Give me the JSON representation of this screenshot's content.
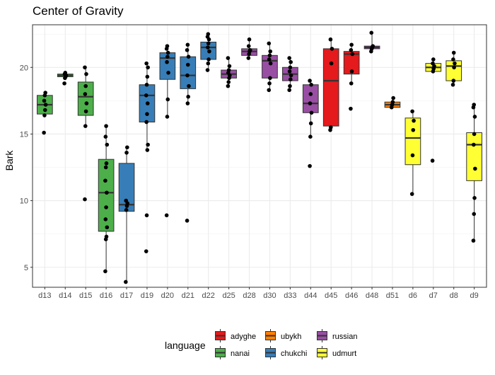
{
  "chart_data": {
    "type": "boxplot",
    "title": "Center of Gravity",
    "xlabel": "",
    "ylabel": "Bark",
    "ylim": [
      3.5,
      23.2
    ],
    "yticks": [
      5,
      10,
      15,
      20
    ],
    "grid": true,
    "legend": {
      "title": "language",
      "placement": "bottom",
      "entries": [
        {
          "name": "adyghe",
          "color": "#E41A1C"
        },
        {
          "name": "nanai",
          "color": "#4DAF4A"
        },
        {
          "name": "ubykh",
          "color": "#FF7F00"
        },
        {
          "name": "chukchi",
          "color": "#377EB8"
        },
        {
          "name": "russian",
          "color": "#984EA3"
        },
        {
          "name": "udmurt",
          "color": "#FFFF33"
        }
      ]
    },
    "categories": [
      "d13",
      "d14",
      "d15",
      "d16",
      "d17",
      "d19",
      "d20",
      "d21",
      "d22",
      "d25",
      "d28",
      "d30",
      "d33",
      "d44",
      "d45",
      "d46",
      "d48",
      "d51",
      "d6",
      "d7",
      "d8",
      "d9"
    ],
    "boxes": [
      {
        "category": "d13",
        "language": "nanai",
        "low": 16.3,
        "q1": 16.5,
        "median": 17.2,
        "q3": 17.9,
        "high": 18.1,
        "outliers": [
          15.1
        ],
        "points": [
          15.1,
          16.4,
          16.8,
          17.2,
          17.5,
          17.9,
          18.1
        ]
      },
      {
        "category": "d14",
        "language": "nanai",
        "low": 19.2,
        "q1": 19.3,
        "median": 19.4,
        "q3": 19.5,
        "high": 19.6,
        "outliers": [
          18.8
        ],
        "points": [
          18.8,
          19.2,
          19.3,
          19.4,
          19.5,
          19.6
        ]
      },
      {
        "category": "d15",
        "language": "nanai",
        "low": 15.6,
        "q1": 16.4,
        "median": 17.8,
        "q3": 18.9,
        "high": 20.0,
        "outliers": [
          10.1
        ],
        "points": [
          10.1,
          15.6,
          16.7,
          17.3,
          18.0,
          18.6,
          19.5,
          20.0
        ]
      },
      {
        "category": "d16",
        "language": "nanai",
        "low": 4.7,
        "q1": 7.7,
        "median": 10.6,
        "q3": 13.1,
        "high": 15.6,
        "outliers": [],
        "points": [
          4.7,
          7.1,
          7.3,
          8.0,
          8.6,
          9.5,
          10.6,
          11.5,
          12.5,
          12.8,
          14.2,
          14.8,
          15.6
        ]
      },
      {
        "category": "d17",
        "language": "chukchi",
        "low": 3.9,
        "q1": 9.2,
        "median": 9.7,
        "q3": 12.8,
        "high": 14.0,
        "outliers": [],
        "points": [
          3.9,
          9.3,
          9.6,
          9.8,
          10.0,
          13.6,
          14.0
        ]
      },
      {
        "category": "d19",
        "language": "chukchi",
        "low": 13.8,
        "q1": 15.9,
        "median": 17.9,
        "q3": 18.7,
        "high": 20.3,
        "outliers": [
          8.9,
          6.2
        ],
        "points": [
          6.2,
          8.9,
          13.8,
          14.2,
          15.9,
          16.5,
          17.3,
          17.9,
          18.7,
          19.3,
          20.0,
          20.3
        ]
      },
      {
        "category": "d20",
        "language": "chukchi",
        "low": 16.3,
        "q1": 19.1,
        "median": 20.7,
        "q3": 21.1,
        "high": 21.6,
        "outliers": [
          8.9
        ],
        "points": [
          8.9,
          16.3,
          17.6,
          19.6,
          20.4,
          20.8,
          21.1,
          21.4,
          21.6
        ]
      },
      {
        "category": "d21",
        "language": "chukchi",
        "low": 17.3,
        "q1": 18.4,
        "median": 19.4,
        "q3": 20.8,
        "high": 21.7,
        "outliers": [
          8.5
        ],
        "points": [
          8.5,
          17.3,
          17.8,
          18.6,
          19.4,
          20.2,
          20.8,
          21.3,
          21.7
        ]
      },
      {
        "category": "d22",
        "language": "chukchi",
        "low": 19.8,
        "q1": 20.6,
        "median": 21.5,
        "q3": 21.9,
        "high": 22.5,
        "outliers": [],
        "points": [
          19.8,
          20.3,
          20.6,
          21.2,
          21.5,
          21.8,
          22.1,
          22.3,
          22.5
        ]
      },
      {
        "category": "d25",
        "language": "russian",
        "low": 18.6,
        "q1": 19.2,
        "median": 19.5,
        "q3": 19.8,
        "high": 20.7,
        "outliers": [],
        "points": [
          18.6,
          18.9,
          19.2,
          19.4,
          19.6,
          19.8,
          20.1,
          20.7
        ]
      },
      {
        "category": "d28",
        "language": "russian",
        "low": 20.7,
        "q1": 20.9,
        "median": 21.2,
        "q3": 21.4,
        "high": 22.1,
        "outliers": [],
        "points": [
          20.7,
          21.0,
          21.2,
          21.3,
          21.6,
          22.1
        ]
      },
      {
        "category": "d30",
        "language": "russian",
        "low": 18.3,
        "q1": 19.2,
        "median": 20.5,
        "q3": 20.9,
        "high": 21.8,
        "outliers": [],
        "points": [
          18.3,
          18.8,
          19.2,
          20.3,
          20.6,
          20.9,
          21.2,
          21.8
        ]
      },
      {
        "category": "d33",
        "language": "russian",
        "low": 18.3,
        "q1": 19.0,
        "median": 19.5,
        "q3": 20.0,
        "high": 20.7,
        "outliers": [],
        "points": [
          18.3,
          18.6,
          19.1,
          19.4,
          19.7,
          20.0,
          20.4,
          20.7
        ]
      },
      {
        "category": "d44",
        "language": "russian",
        "low": 14.8,
        "q1": 16.6,
        "median": 17.3,
        "q3": 18.7,
        "high": 19.0,
        "outliers": [
          12.6
        ],
        "points": [
          12.6,
          14.8,
          15.8,
          16.6,
          17.3,
          18.0,
          18.7,
          19.0
        ]
      },
      {
        "category": "d45",
        "language": "adyghe",
        "low": 15.3,
        "q1": 15.6,
        "median": 19.0,
        "q3": 21.4,
        "high": 22.1,
        "outliers": [],
        "points": [
          15.3,
          15.5,
          20.3,
          21.4,
          22.1
        ]
      },
      {
        "category": "d46",
        "language": "adyghe",
        "low": 18.8,
        "q1": 19.5,
        "median": 21.0,
        "q3": 21.2,
        "high": 21.7,
        "outliers": [
          16.9
        ],
        "points": [
          16.9,
          18.8,
          19.7,
          21.0,
          21.3,
          21.7
        ]
      },
      {
        "category": "d48",
        "language": "russian",
        "low": 21.2,
        "q1": 21.4,
        "median": 21.5,
        "q3": 21.6,
        "high": 22.6,
        "outliers": [],
        "points": [
          21.2,
          21.4,
          21.5,
          21.6,
          22.6
        ]
      },
      {
        "category": "d51",
        "language": "ubykh",
        "low": 17.0,
        "q1": 17.0,
        "median": 17.2,
        "q3": 17.4,
        "high": 17.7,
        "outliers": [],
        "points": [
          17.0,
          17.2,
          17.4,
          17.7
        ]
      },
      {
        "category": "d6",
        "language": "udmurt",
        "low": 10.5,
        "q1": 12.7,
        "median": 14.7,
        "q3": 16.2,
        "high": 16.7,
        "outliers": [],
        "points": [
          10.5,
          13.4,
          15.3,
          16.0,
          16.7
        ]
      },
      {
        "category": "d7",
        "language": "udmurt",
        "low": 19.7,
        "q1": 19.7,
        "median": 20.0,
        "q3": 20.3,
        "high": 20.6,
        "outliers": [
          13.0
        ],
        "points": [
          13.0,
          19.7,
          19.9,
          20.1,
          20.3,
          20.6
        ]
      },
      {
        "category": "d8",
        "language": "udmurt",
        "low": 18.7,
        "q1": 19.0,
        "median": 20.1,
        "q3": 20.5,
        "high": 21.1,
        "outliers": [],
        "points": [
          18.7,
          19.0,
          20.0,
          20.3,
          20.6,
          21.1
        ]
      },
      {
        "category": "d9",
        "language": "udmurt",
        "low": 7.0,
        "q1": 11.5,
        "median": 14.2,
        "q3": 15.1,
        "high": 17.2,
        "outliers": [],
        "points": [
          7.0,
          9.0,
          10.2,
          12.4,
          14.2,
          15.0,
          16.3,
          17.0,
          17.2
        ]
      }
    ]
  }
}
